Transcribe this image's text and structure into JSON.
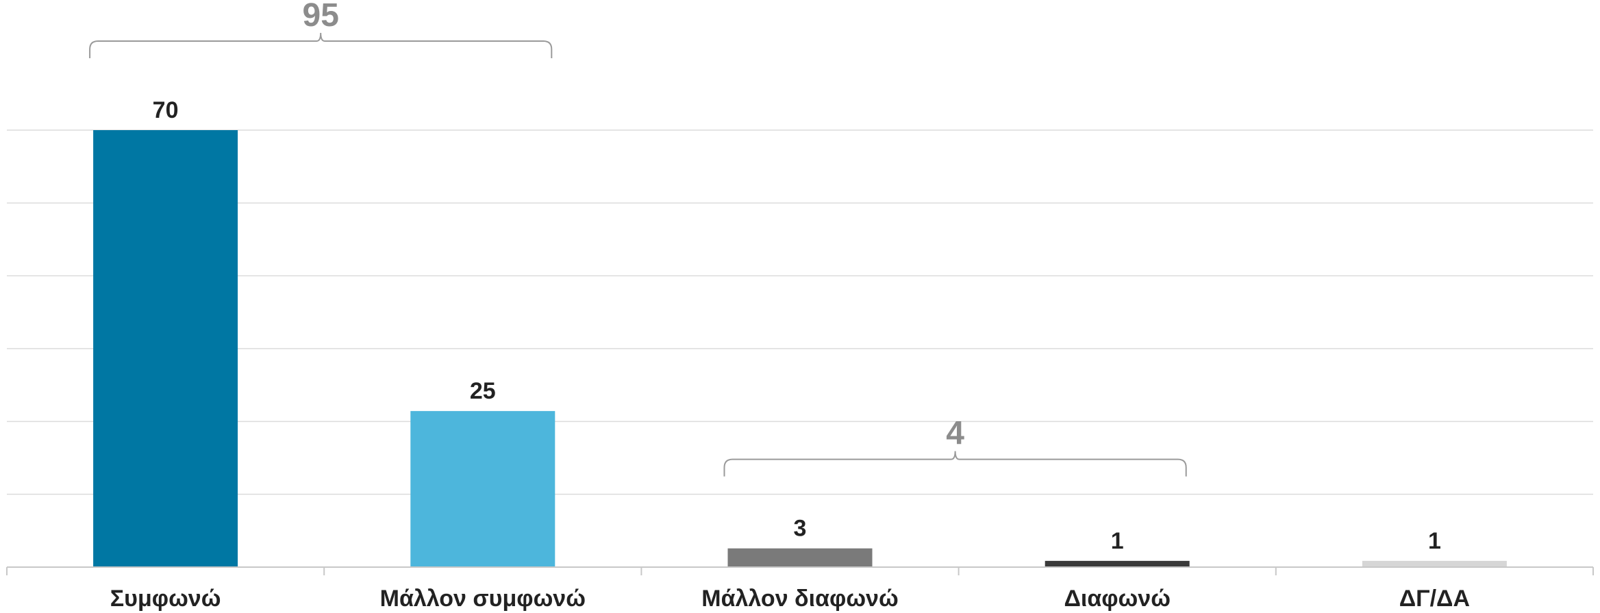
{
  "chart_data": {
    "type": "bar",
    "categories": [
      "Συμφωνώ",
      "Μάλλον συμφωνώ",
      "Μάλλον διαφωνώ",
      "Διαφωνώ",
      "ΔΓ/ΔΑ"
    ],
    "values": [
      70,
      25,
      3,
      1,
      1
    ],
    "data_labels": [
      "70",
      "25",
      "3",
      "1",
      "1"
    ],
    "colors": [
      "#0077a3",
      "#4db6dc",
      "#7a7a7a",
      "#3a3a3a",
      "#d6d6d6"
    ],
    "ylim": [
      0,
      70
    ],
    "grid": true,
    "gridline_count": 6,
    "group_totals": [
      {
        "label": "95",
        "from_category": 0,
        "to_category": 1
      },
      {
        "label": "4",
        "from_category": 2,
        "to_category": 3
      }
    ],
    "title": "",
    "xlabel": "",
    "ylabel": ""
  }
}
